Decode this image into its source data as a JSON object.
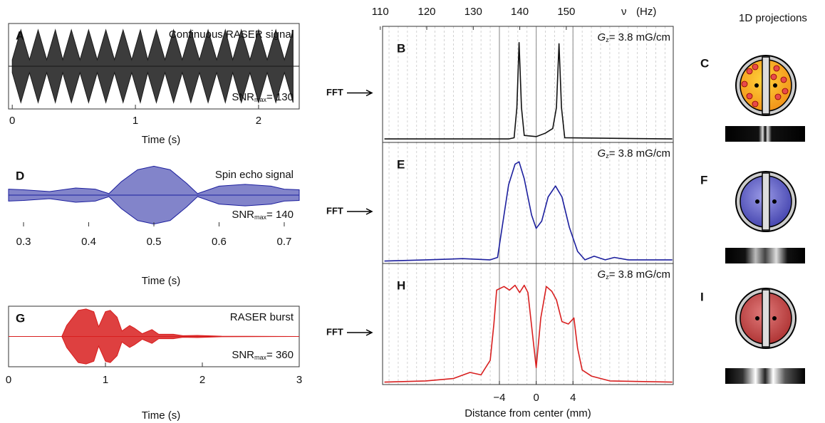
{
  "chart_data": [
    {
      "type": "signal",
      "panel": "A",
      "title": "Continuous RASER signal",
      "xlabel": "Time (s)",
      "color": "#1a1a1a",
      "snr_label": "SNR",
      "snr_subscript": "max",
      "snr_value": "= 130",
      "x": [
        0.0,
        0.07,
        0.14,
        0.21,
        0.28,
        0.35,
        0.41,
        0.48,
        0.55,
        0.62,
        0.69,
        0.76,
        0.83,
        0.9,
        0.97,
        1.04,
        1.1,
        1.17,
        1.24,
        1.31,
        1.38,
        1.45,
        1.52,
        1.59,
        1.66,
        1.73,
        1.79,
        1.86,
        1.93,
        2.0,
        2.07,
        2.14,
        2.21,
        2.28
      ],
      "values": [
        0.15,
        0.85,
        0.15,
        0.85,
        0.15,
        0.85,
        0.15,
        0.85,
        0.15,
        0.85,
        0.15,
        0.85,
        0.15,
        0.85,
        0.15,
        0.85,
        0.15,
        0.85,
        0.15,
        0.85,
        0.15,
        0.85,
        0.15,
        0.85,
        0.15,
        0.85,
        0.15,
        0.85,
        0.15,
        0.85,
        0.15,
        0.85,
        0.15,
        0.85
      ],
      "xlim": [
        -0.03,
        2.33
      ],
      "ylim": [
        -1,
        1
      ],
      "xticks": [
        0,
        1,
        2
      ]
    },
    {
      "type": "signal",
      "panel": "D",
      "title": "Spin echo signal",
      "xlabel": "Time (s)",
      "color": "#1c1f9e",
      "snr_label": "SNR",
      "snr_subscript": "max",
      "snr_value": "= 140",
      "x": [
        0.277,
        0.3,
        0.34,
        0.38,
        0.41,
        0.431,
        0.45,
        0.475,
        0.5,
        0.525,
        0.55,
        0.567,
        0.6,
        0.64,
        0.68,
        0.7,
        0.723
      ],
      "values": [
        0.2,
        0.18,
        0.12,
        0.24,
        0.2,
        0.05,
        0.45,
        0.85,
        0.97,
        0.85,
        0.4,
        0.05,
        0.3,
        0.36,
        0.3,
        0.2,
        0.18
      ],
      "xlim": [
        0.277,
        0.723
      ],
      "ylim": [
        -1.05,
        1.05
      ],
      "xticks": [
        0.3,
        0.4,
        0.5,
        0.6,
        0.7
      ]
    },
    {
      "type": "signal",
      "panel": "G",
      "title": "RASER burst",
      "xlabel": "Time (s)",
      "color": "#d81f1f",
      "snr_label": "SNR",
      "snr_subscript": "max",
      "snr_value": "= 360",
      "x": [
        0,
        0.55,
        0.6,
        0.72,
        0.8,
        0.88,
        0.93,
        1.0,
        1.05,
        1.12,
        1.17,
        1.25,
        1.3,
        1.38,
        1.48,
        1.55,
        1.7,
        1.8,
        1.95,
        2.2,
        3
      ],
      "values": [
        0,
        0,
        0.4,
        0.95,
        1,
        0.9,
        0.35,
        0.9,
        0.95,
        0.7,
        0.2,
        0.4,
        0.3,
        0.1,
        0.25,
        0.08,
        0.08,
        0.03,
        0.04,
        0.01,
        0
      ],
      "xlim": [
        0,
        3
      ],
      "ylim": [
        -1.1,
        1.1
      ],
      "xticks": [
        0,
        1,
        2,
        3
      ]
    },
    {
      "type": "spectrum",
      "panel": "B",
      "fft_label": "FFT",
      "gradient_label": "G",
      "gradient_subscript": "z",
      "gradient_value": "= 3.8 mG/cm",
      "color": "#111111",
      "x": [
        -16.5,
        -3,
        -2.4,
        -2.1,
        -1.86,
        -1.6,
        -1.3,
        0,
        1,
        1.8,
        2.2,
        2.48,
        2.75,
        3.1,
        14.8
      ],
      "values": [
        0.03,
        0.03,
        0.04,
        0.3,
        0.86,
        0.3,
        0.06,
        0.05,
        0.08,
        0.12,
        0.3,
        0.85,
        0.3,
        0.04,
        0.03
      ],
      "xlim": [
        -16.7,
        14.9
      ],
      "ylim": [
        0,
        1
      ],
      "grid_step": 1,
      "x2lim": [
        110.5,
        173
      ],
      "x2ticks": [
        110,
        120,
        130,
        140,
        150
      ],
      "x2label": "ν",
      "x2unit": "(Hz)"
    },
    {
      "type": "spectrum",
      "panel": "E",
      "fft_label": "FFT",
      "gradient_label": "G",
      "gradient_subscript": "z",
      "gradient_value": "= 3.8 mG/cm",
      "color": "#1c1f9e",
      "x": [
        -16.5,
        -12,
        -8,
        -5,
        -4.2,
        -3.7,
        -3,
        -2.3,
        -1.86,
        -1.3,
        -0.5,
        0,
        0.6,
        1.3,
        2.1,
        2.8,
        3.6,
        4.5,
        5.3,
        6.3,
        7.5,
        8.5,
        10,
        14.8
      ],
      "values": [
        0.02,
        0.03,
        0.04,
        0.03,
        0.05,
        0.3,
        0.65,
        0.82,
        0.84,
        0.7,
        0.4,
        0.29,
        0.35,
        0.55,
        0.64,
        0.55,
        0.3,
        0.1,
        0.03,
        0.06,
        0.03,
        0.05,
        0.03,
        0.03
      ],
      "xlim": [
        -16.7,
        14.9
      ],
      "ylim": [
        0,
        1
      ],
      "grid_step": 1
    },
    {
      "type": "spectrum",
      "panel": "H",
      "fft_label": "FFT",
      "gradient_label": "G",
      "gradient_subscript": "z",
      "gradient_value": "= 3.8 mG/cm",
      "color": "#d81f1f",
      "x": [
        -16.5,
        -12,
        -9,
        -7.2,
        -6,
        -5,
        -4.6,
        -4.3,
        -3.5,
        -2.9,
        -2.3,
        -1.8,
        -1.3,
        -0.9,
        0,
        0.5,
        1.1,
        1.7,
        2.2,
        2.8,
        3.5,
        4.1,
        4.5,
        5,
        6,
        8,
        14.8
      ],
      "values": [
        0.02,
        0.03,
        0.05,
        0.1,
        0.08,
        0.2,
        0.5,
        0.78,
        0.81,
        0.78,
        0.82,
        0.76,
        0.82,
        0.76,
        0.14,
        0.55,
        0.81,
        0.77,
        0.7,
        0.52,
        0.5,
        0.55,
        0.3,
        0.12,
        0.07,
        0.03,
        0.02
      ],
      "xlim": [
        -16.7,
        14.9
      ],
      "ylim": [
        0,
        1
      ],
      "grid_step": 1,
      "xticks": [
        {
          "value": -4,
          "label": "−4"
        },
        0,
        4
      ],
      "xlabel": "Distance from center (mm)"
    }
  ],
  "projections": {
    "title": "1D projections",
    "panels": [
      "C",
      "F",
      "I"
    ]
  }
}
